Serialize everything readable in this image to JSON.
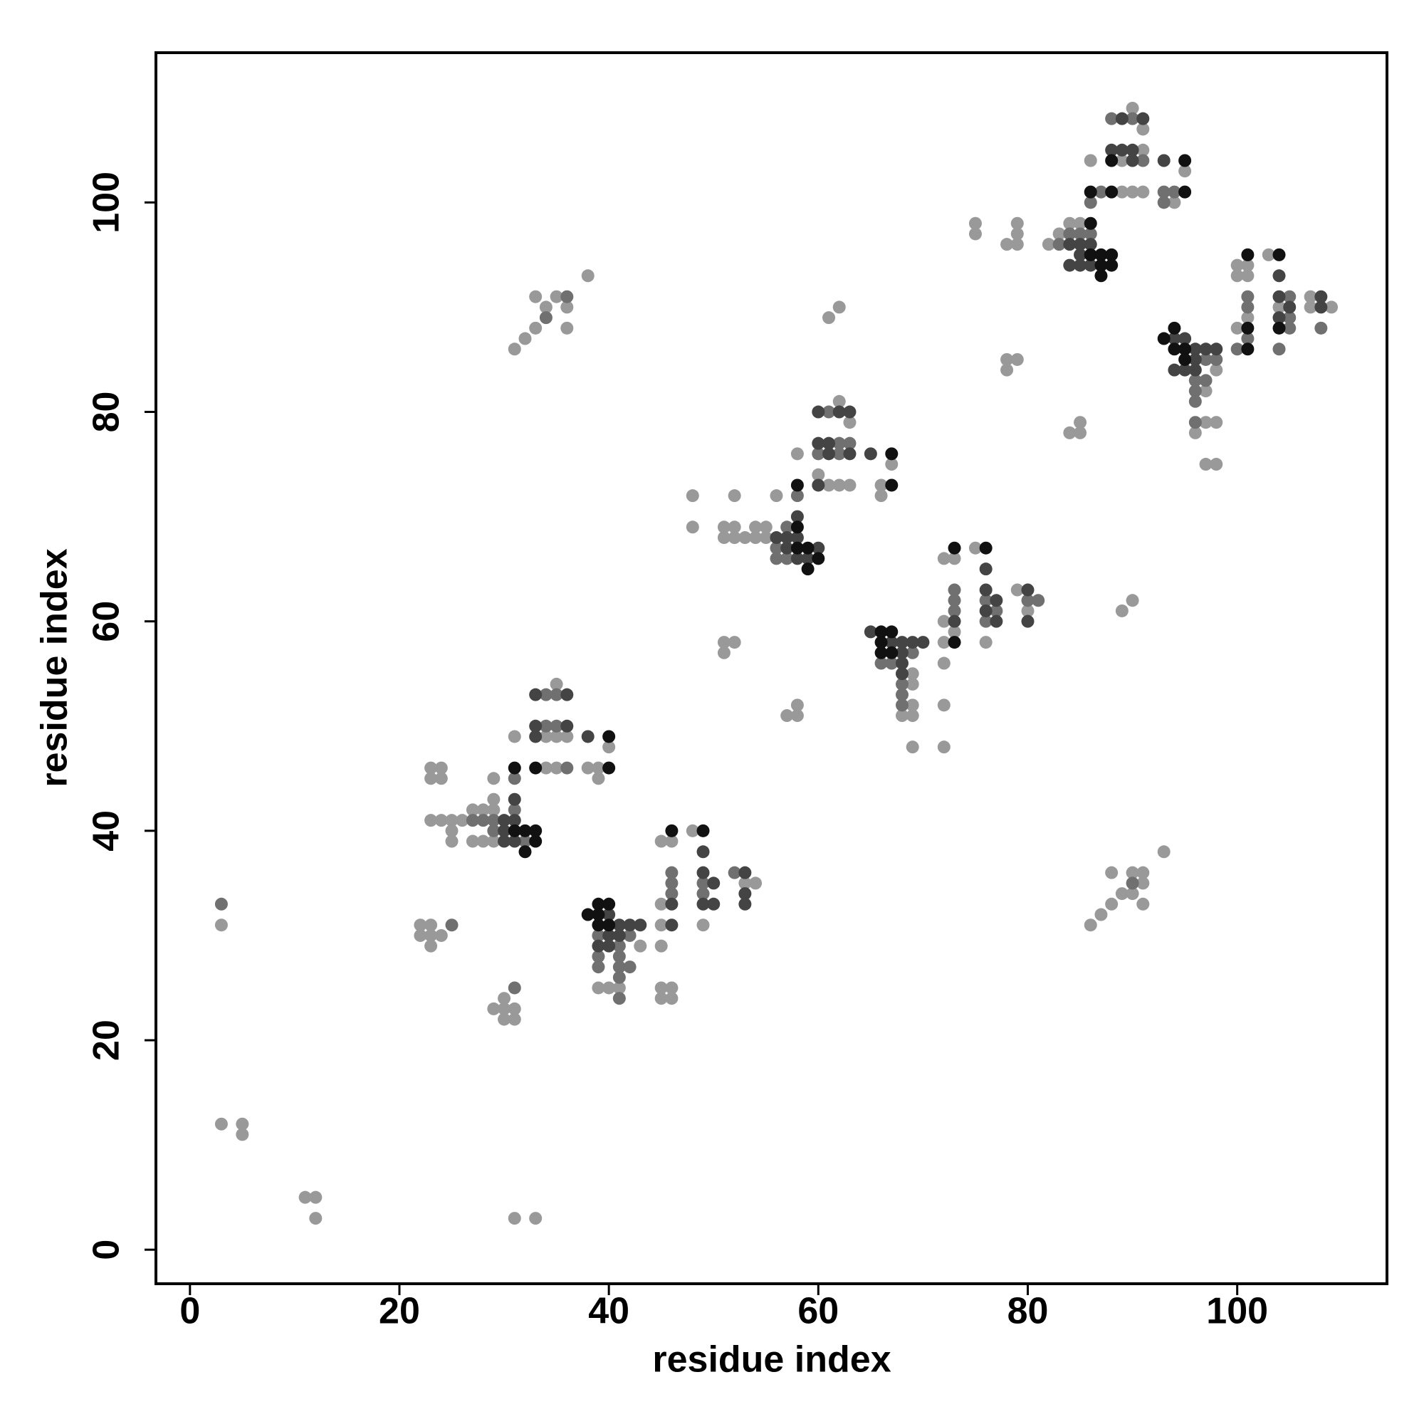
{
  "chart_data": {
    "type": "scatter",
    "xlabel": "residue index",
    "ylabel": "residue index",
    "xlim": [
      -3.25,
      114.3
    ],
    "ylim": [
      -3.25,
      114.3
    ],
    "xticks": [
      0,
      20,
      40,
      60,
      80,
      100
    ],
    "yticks": [
      0,
      20,
      40,
      60,
      80,
      100
    ],
    "series": [
      {
        "color": "#999999",
        "x": [
          3,
          3,
          5,
          5,
          11,
          12,
          12,
          31,
          33,
          22,
          23,
          22,
          23,
          24,
          23,
          29,
          30,
          31,
          30,
          30,
          31,
          31,
          32,
          33,
          33,
          34,
          35,
          36,
          36,
          38,
          61,
          62,
          51,
          52,
          51,
          57,
          58,
          58,
          75,
          75,
          78,
          79,
          79,
          79,
          78,
          79,
          78,
          84,
          85,
          85,
          89,
          90,
          86,
          87,
          88,
          89,
          88,
          90,
          91,
          91,
          91,
          93,
          90,
          48,
          48,
          52,
          56,
          51,
          52,
          51,
          52,
          53,
          54,
          54,
          55,
          23,
          24,
          23,
          24,
          23,
          24,
          25,
          26,
          25,
          25,
          27,
          28,
          29,
          29,
          29,
          28,
          27,
          29,
          31,
          34,
          35,
          36,
          34,
          35,
          35,
          39,
          39,
          40,
          38,
          39,
          40,
          41,
          43,
          45,
          45,
          45,
          45,
          46,
          45,
          46,
          45,
          46,
          48,
          49,
          53,
          54,
          55,
          58,
          60,
          62,
          63,
          61,
          62,
          63,
          67,
          66,
          66,
          69,
          69,
          69,
          68,
          69,
          69,
          72,
          72,
          72,
          72,
          73,
          72,
          72,
          73,
          75,
          76,
          79,
          80,
          82,
          83,
          84,
          85,
          86,
          89,
          91,
          90,
          91,
          89,
          90,
          91,
          94,
          95,
          96,
          97,
          98,
          97,
          98,
          98,
          97,
          100,
          101,
          100,
          101,
          100,
          101,
          103,
          104,
          107,
          107,
          109
        ],
        "values": [
          31,
          12,
          12,
          11,
          5,
          5,
          3,
          3,
          3,
          31,
          31,
          30,
          30,
          30,
          29,
          23,
          23,
          23,
          24,
          22,
          22,
          86,
          87,
          88,
          91,
          90,
          91,
          90,
          88,
          93,
          89,
          90,
          58,
          58,
          57,
          51,
          51,
          52,
          98,
          97,
          96,
          98,
          97,
          96,
          85,
          85,
          84,
          78,
          78,
          79,
          61,
          62,
          31,
          32,
          33,
          34,
          36,
          36,
          36,
          35,
          33,
          38,
          34,
          72,
          69,
          72,
          72,
          69,
          69,
          68,
          68,
          68,
          69,
          68,
          69,
          46,
          46,
          45,
          45,
          41,
          41,
          41,
          41,
          40,
          39,
          42,
          42,
          42,
          43,
          45,
          39,
          39,
          39,
          49,
          49,
          49,
          49,
          46,
          46,
          54,
          46,
          45,
          48,
          46,
          25,
          25,
          25,
          29,
          29,
          31,
          33,
          39,
          39,
          24,
          24,
          25,
          25,
          40,
          31,
          35,
          35,
          68,
          76,
          74,
          81,
          79,
          73,
          73,
          73,
          75,
          73,
          72,
          55,
          54,
          52,
          51,
          51,
          48,
          48,
          52,
          56,
          58,
          59,
          60,
          66,
          66,
          67,
          58,
          63,
          61,
          96,
          97,
          98,
          98,
          104,
          104,
          105,
          109,
          107,
          101,
          101,
          101,
          100,
          103,
          78,
          79,
          79,
          75,
          75,
          84,
          82,
          94,
          94,
          93,
          93,
          88,
          89,
          95,
          90,
          91,
          90,
          90
        ]
      },
      {
        "color": "#707070",
        "x": [
          3,
          25,
          31,
          34,
          36,
          27,
          28,
          29,
          31,
          29,
          32,
          31,
          34,
          35,
          34,
          35,
          36,
          39,
          39,
          41,
          42,
          41,
          39,
          41,
          42,
          41,
          41,
          46,
          46,
          46,
          49,
          49,
          52,
          56,
          56,
          57,
          57,
          58,
          60,
          62,
          63,
          61,
          62,
          66,
          67,
          68,
          68,
          68,
          69,
          73,
          73,
          73,
          76,
          77,
          76,
          81,
          80,
          83,
          84,
          85,
          86,
          87,
          86,
          88,
          90,
          91,
          94,
          93,
          93,
          97,
          98,
          96,
          96,
          96,
          97,
          96,
          101,
          101,
          104,
          105,
          105,
          105,
          108,
          90,
          100,
          101
        ],
        "values": [
          33,
          31,
          25,
          89,
          91,
          41,
          41,
          41,
          42,
          40,
          39,
          45,
          50,
          50,
          53,
          53,
          46,
          30,
          28,
          29,
          30,
          28,
          27,
          27,
          27,
          26,
          24,
          36,
          35,
          34,
          35,
          34,
          36,
          67,
          66,
          66,
          69,
          72,
          76,
          77,
          77,
          80,
          76,
          56,
          56,
          54,
          53,
          52,
          57,
          62,
          63,
          61,
          62,
          61,
          60,
          62,
          62,
          96,
          97,
          97,
          97,
          101,
          100,
          108,
          108,
          104,
          101,
          101,
          100,
          85,
          85,
          83,
          82,
          81,
          83,
          79,
          91,
          90,
          86,
          91,
          89,
          88,
          88,
          35,
          86,
          87
        ]
      },
      {
        "color": "#444444",
        "x": [
          30,
          31,
          30,
          31,
          30,
          31,
          33,
          33,
          36,
          33,
          36,
          38,
          40,
          41,
          42,
          43,
          40,
          41,
          40,
          39,
          46,
          46,
          49,
          49,
          50,
          49,
          50,
          53,
          53,
          53,
          57,
          58,
          56,
          57,
          58,
          59,
          60,
          58,
          60,
          60,
          61,
          61,
          60,
          62,
          63,
          63,
          65,
          65,
          67,
          68,
          69,
          70,
          68,
          68,
          68,
          73,
          76,
          76,
          77,
          76,
          77,
          80,
          80,
          84,
          85,
          86,
          85,
          84,
          85,
          86,
          88,
          89,
          90,
          89,
          91,
          90,
          93,
          94,
          95,
          96,
          97,
          98,
          94,
          95,
          96,
          96,
          104,
          104,
          105,
          104,
          108,
          108
        ],
        "values": [
          41,
          41,
          40,
          39,
          39,
          43,
          49,
          50,
          53,
          53,
          50,
          49,
          32,
          31,
          31,
          31,
          30,
          30,
          29,
          29,
          33,
          31,
          38,
          36,
          35,
          33,
          33,
          36,
          34,
          33,
          68,
          68,
          68,
          67,
          66,
          66,
          67,
          70,
          73,
          77,
          77,
          76,
          80,
          80,
          80,
          76,
          76,
          59,
          58,
          58,
          58,
          58,
          57,
          56,
          55,
          60,
          65,
          63,
          62,
          61,
          60,
          63,
          60,
          96,
          96,
          96,
          95,
          94,
          94,
          94,
          105,
          105,
          105,
          108,
          108,
          104,
          104,
          87,
          87,
          86,
          86,
          86,
          84,
          84,
          85,
          84,
          93,
          91,
          90,
          89,
          91,
          90
        ]
      },
      {
        "color": "#111111",
        "x": [
          32,
          33,
          32,
          31,
          33,
          31,
          33,
          40,
          40,
          38,
          39,
          40,
          39,
          39,
          40,
          46,
          49,
          58,
          59,
          59,
          60,
          58,
          58,
          67,
          67,
          66,
          67,
          66,
          67,
          66,
          73,
          76,
          73,
          86,
          88,
          88,
          95,
          95,
          86,
          87,
          88,
          87,
          88,
          87,
          86,
          93,
          94,
          95,
          94,
          95,
          101,
          104,
          101,
          101,
          104
        ],
        "values": [
          38,
          40,
          40,
          40,
          39,
          46,
          46,
          49,
          46,
          32,
          33,
          33,
          32,
          31,
          31,
          40,
          40,
          67,
          67,
          65,
          66,
          69,
          73,
          76,
          73,
          59,
          59,
          57,
          57,
          58,
          67,
          67,
          58,
          101,
          101,
          104,
          101,
          104,
          95,
          95,
          95,
          94,
          94,
          93,
          98,
          87,
          86,
          86,
          88,
          85,
          95,
          95,
          88,
          86,
          88
        ]
      }
    ]
  }
}
